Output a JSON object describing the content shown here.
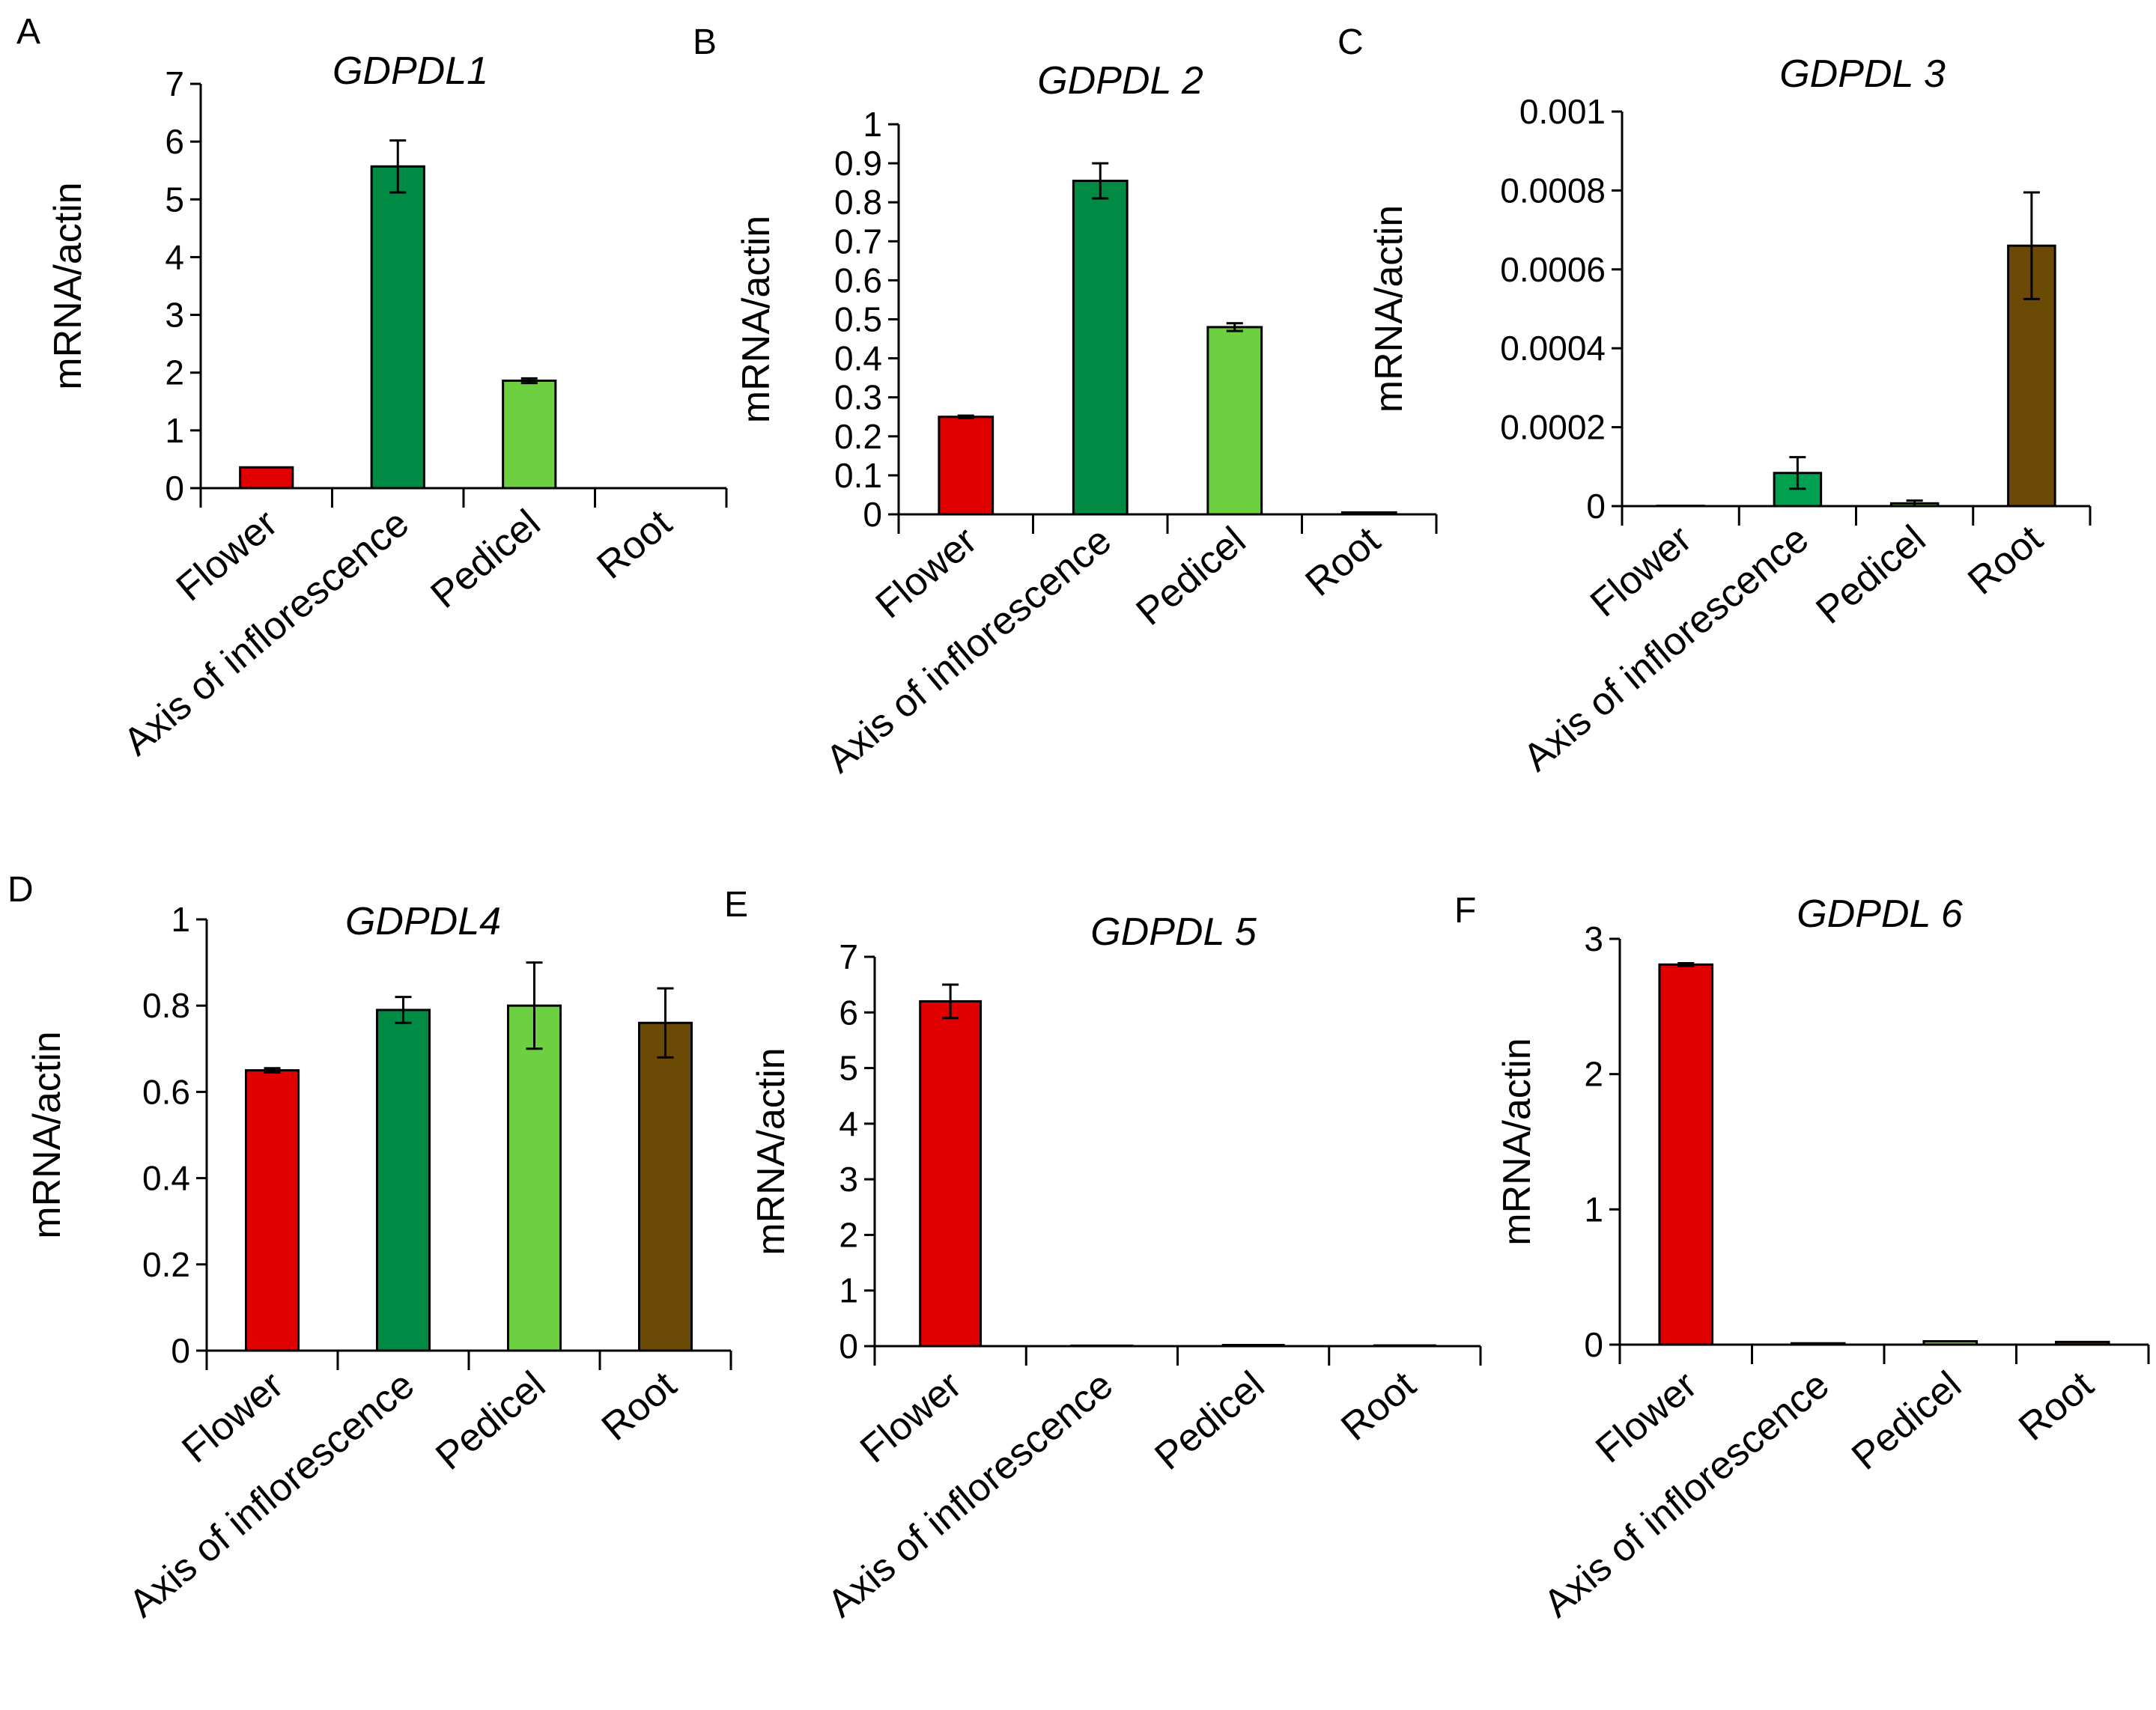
{
  "figure": {
    "colors": {
      "flower": "#e00000",
      "axis": "#008a44",
      "pedicel": "#6cd040",
      "root": "#6b4a06",
      "edge": "#000000"
    }
  },
  "chart_data": [
    {
      "type": "bar",
      "panel": "A",
      "title": "GDPDL1",
      "xlabel": "",
      "ylabel": "mRNA/actin",
      "ylim": [
        0,
        7
      ],
      "yticks": [
        "0",
        "1",
        "2",
        "3",
        "4",
        "5",
        "6",
        "7"
      ],
      "categories": [
        "Flower",
        "Axis of inflorescence",
        "Pedicel",
        "Root"
      ],
      "values": [
        0.36,
        5.57,
        1.86,
        0
      ],
      "errors": [
        0,
        0.45,
        0.04,
        0
      ],
      "colors": [
        "#e00000",
        "#008a44",
        "#6cd040",
        "#6b4a06"
      ]
    },
    {
      "type": "bar",
      "panel": "B",
      "title": "GDPDL 2",
      "xlabel": "",
      "ylabel": "mRNA/actin",
      "ylim": [
        0,
        1
      ],
      "yticks": [
        "0",
        "0.1",
        "0.2",
        "0.3",
        "0.4",
        "0.5",
        "0.6",
        "0.7",
        "0.8",
        "0.9",
        "1"
      ],
      "categories": [
        "Flower",
        "Axis of inflorescence",
        "Pedicel",
        "Root"
      ],
      "values": [
        0.25,
        0.855,
        0.48,
        0.005
      ],
      "errors": [
        0.003,
        0.045,
        0.01,
        0
      ],
      "colors": [
        "#e00000",
        "#008a44",
        "#6cd040",
        "#6b4a06"
      ]
    },
    {
      "type": "bar",
      "panel": "C",
      "title": "GDPDL 3",
      "xlabel": "",
      "ylabel": "mRNA/actin",
      "ylim": [
        0,
        0.001
      ],
      "yticks": [
        "0",
        "0.0002",
        "0.0004",
        "0.0006",
        "0.0008",
        "0.001"
      ],
      "categories": [
        "Flower",
        "Axis of inflorescence",
        "Pedicel",
        "Root"
      ],
      "values": [
        7e-07,
        8.4e-05,
        7e-06,
        0.00066
      ],
      "errors": [
        0,
        4e-05,
        7e-06,
        0.000135
      ],
      "colors": [
        "#e00000",
        "#00a050",
        "#6cd040",
        "#6b4a06"
      ]
    },
    {
      "type": "bar",
      "panel": "D",
      "title": "GDPDL4",
      "xlabel": "",
      "ylabel": "mRNA/actin",
      "ylim": [
        0,
        1
      ],
      "yticks": [
        "0",
        "0.2",
        "0.4",
        "0.6",
        "0.8",
        "1"
      ],
      "categories": [
        "Flower",
        "Axis of inflorescence",
        "Pedicel",
        "Root"
      ],
      "values": [
        0.65,
        0.79,
        0.8,
        0.76
      ],
      "errors": [
        0.005,
        0.03,
        0.1,
        0.08
      ],
      "colors": [
        "#e00000",
        "#008a44",
        "#6cd040",
        "#6b4a06"
      ]
    },
    {
      "type": "bar",
      "panel": "E",
      "title": "GDPDL 5",
      "xlabel": "",
      "ylabel": "mRNA/actin",
      "ylim": [
        0,
        7
      ],
      "yticks": [
        "0",
        "1",
        "2",
        "3",
        "4",
        "5",
        "6",
        "7"
      ],
      "categories": [
        "Flower",
        "Axis of inflorescence",
        "Pedicel",
        "Root"
      ],
      "values": [
        6.2,
        0.008,
        0.02,
        0.012
      ],
      "errors": [
        0.3,
        0,
        0,
        0
      ],
      "colors": [
        "#e00000",
        "#008a44",
        "#6cd040",
        "#6b4a06"
      ]
    },
    {
      "type": "bar",
      "panel": "F",
      "title": "GDPDL 6",
      "xlabel": "",
      "ylabel": "mRNA/actin",
      "ylim": [
        0,
        3
      ],
      "yticks": [
        "0",
        "1",
        "2",
        "3"
      ],
      "categories": [
        "Flower",
        "Axis of inflorescence",
        "Pedicel",
        "Root"
      ],
      "values": [
        2.81,
        0.01,
        0.025,
        0.02
      ],
      "errors": [
        0.01,
        0,
        0,
        0
      ],
      "colors": [
        "#e00000",
        "#008a44",
        "#6cd040",
        "#6b4a06"
      ]
    }
  ]
}
